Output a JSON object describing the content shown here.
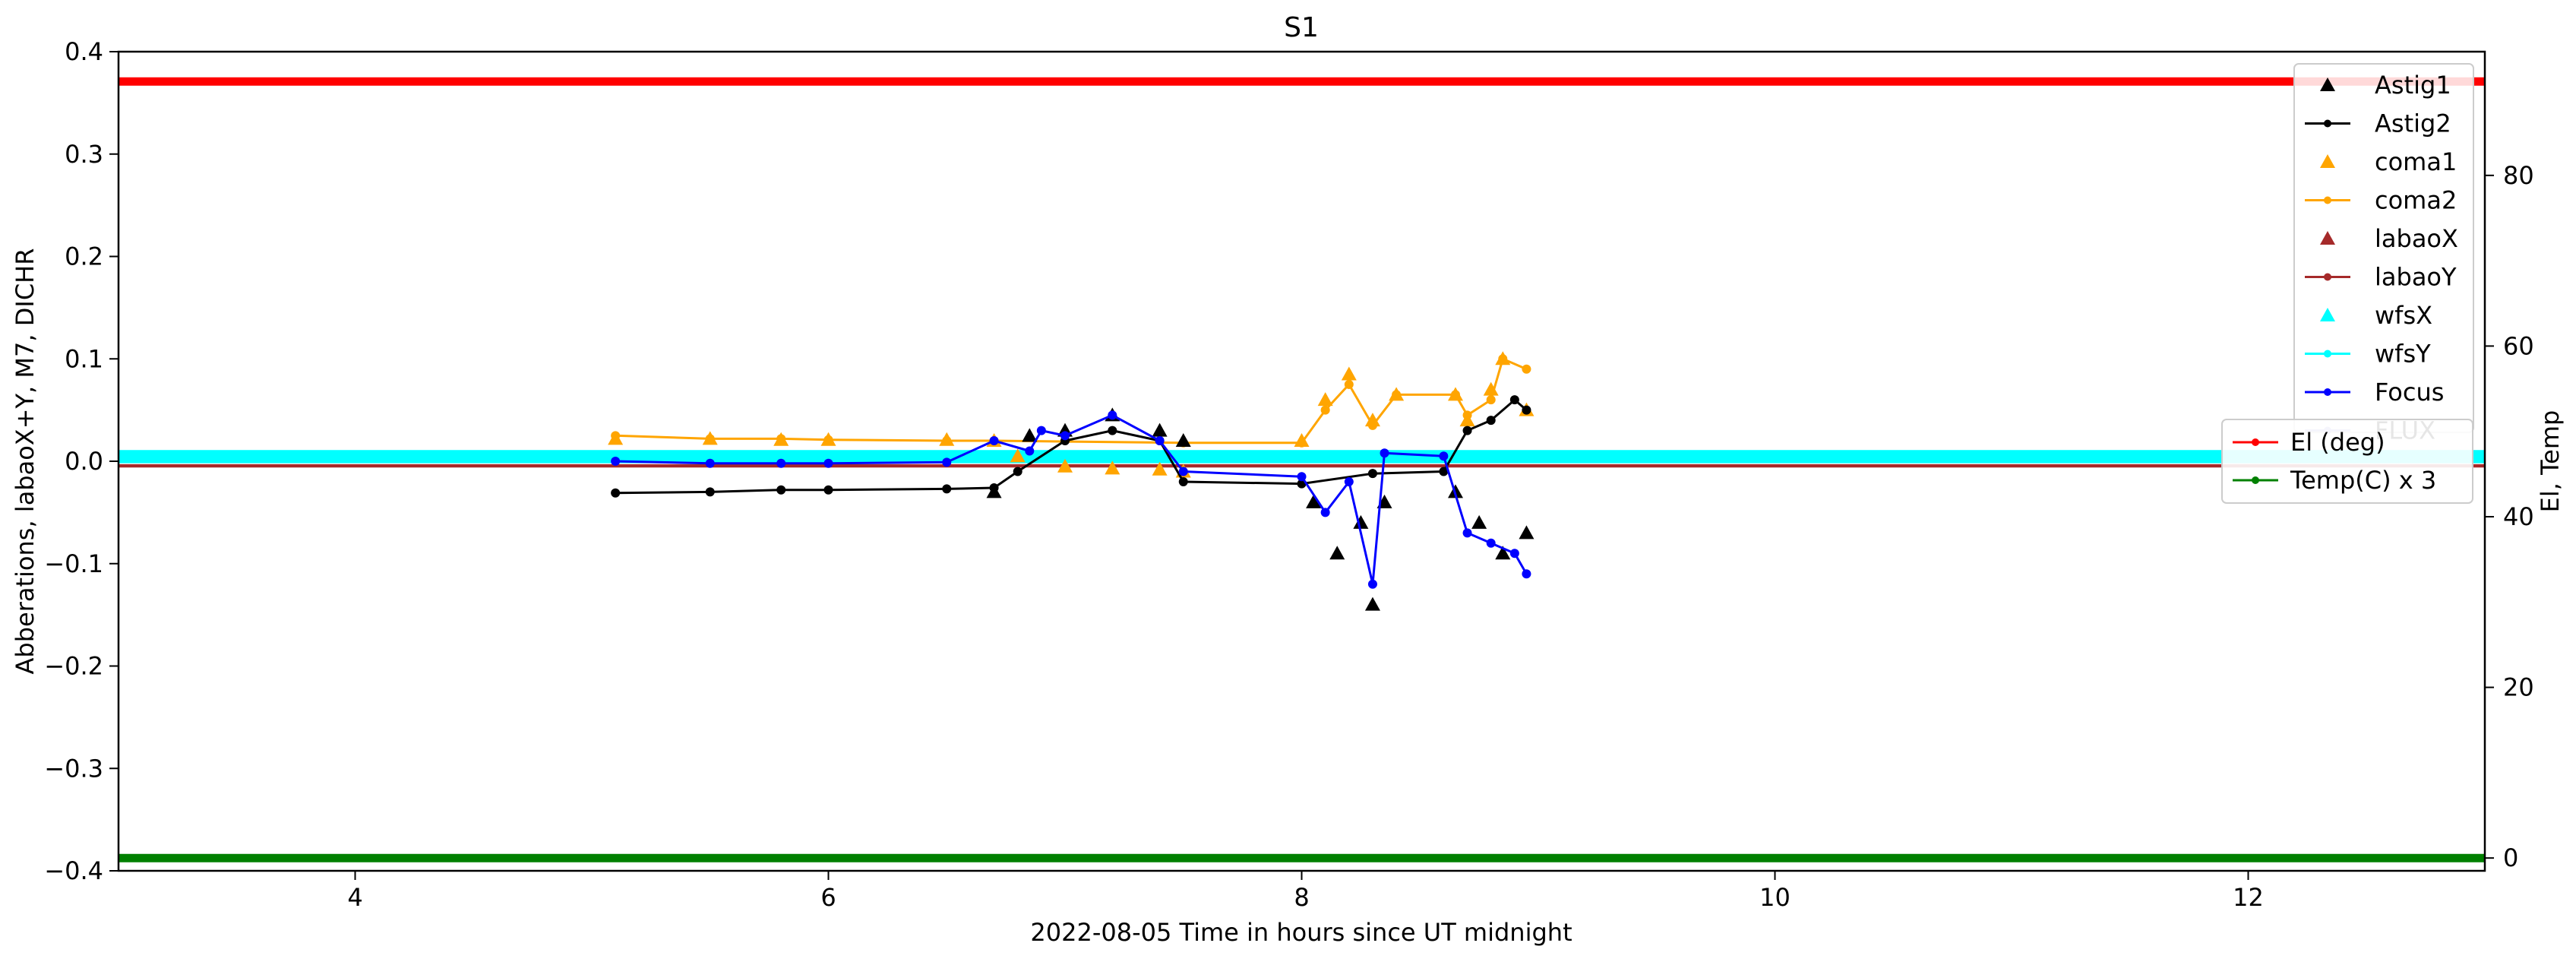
{
  "chart_data": {
    "type": "line",
    "title": "S1",
    "xlabel": "2022-08-05  Time in hours since UT midnight",
    "ylabel": "Abberations, labaoX+Y, M7, DICHR",
    "ylabel_right": "El, Temp",
    "xlim": [
      3,
      13
    ],
    "ylim": [
      -0.4,
      0.4
    ],
    "ylim_right": [
      -1.5,
      94.5
    ],
    "x_ticks": [
      4,
      6,
      8,
      10,
      12
    ],
    "y_ticks": [
      -0.4,
      -0.3,
      -0.2,
      -0.1,
      0.0,
      0.1,
      0.2,
      0.3,
      0.4
    ],
    "y_tick_labels": [
      "−0.4",
      "−0.3",
      "−0.2",
      "−0.1",
      "0.0",
      "0.1",
      "0.2",
      "0.3",
      "0.4"
    ],
    "y_right_ticks": [
      0,
      20,
      40,
      60,
      80
    ],
    "grid": false,
    "legend_main": {
      "placement": "top-right",
      "entries": [
        {
          "label": "Astig1",
          "color": "#000000",
          "style": "triangle"
        },
        {
          "label": "Astig2",
          "color": "#000000",
          "style": "line-dot"
        },
        {
          "label": "coma1",
          "color": "#ffa500",
          "style": "triangle"
        },
        {
          "label": "coma2",
          "color": "#ffa500",
          "style": "line-dot"
        },
        {
          "label": "labaoX",
          "color": "#a52a2a",
          "style": "triangle"
        },
        {
          "label": "labaoY",
          "color": "#a52a2a",
          "style": "line-dot"
        },
        {
          "label": "wfsX",
          "color": "#00ffff",
          "style": "triangle"
        },
        {
          "label": "wfsY",
          "color": "#00ffff",
          "style": "line-dot"
        },
        {
          "label": "Focus",
          "color": "#0000ff",
          "style": "line-dot"
        },
        {
          "label": "FLUX",
          "color": "#9999dd",
          "style": "line-dot"
        }
      ]
    },
    "legend_right": {
      "placement": "center-right",
      "entries": [
        {
          "label": "El (deg)",
          "color": "#ff0000",
          "style": "line-dot"
        },
        {
          "label": "Temp(C) x 3",
          "color": "#008000",
          "style": "line-dot"
        }
      ]
    },
    "series": [
      {
        "name": "El (deg)",
        "axis": "right",
        "color": "#ff0000",
        "x": [
          3,
          13
        ],
        "y": [
          91,
          91
        ]
      },
      {
        "name": "Temp(C) x 3",
        "axis": "right",
        "color": "#008000",
        "x": [
          3,
          13
        ],
        "y": [
          0,
          0
        ]
      },
      {
        "name": "labaoX",
        "color": "#a52a2a",
        "x": [
          3,
          13
        ],
        "y": [
          -0.004,
          -0.004
        ]
      },
      {
        "name": "labaoY",
        "color": "#a52a2a",
        "x": [
          3,
          13
        ],
        "y": [
          -0.005,
          -0.005
        ]
      },
      {
        "name": "wfsX",
        "color": "#00ffff",
        "x": [
          3,
          13
        ],
        "y": [
          0.005,
          0.005
        ]
      },
      {
        "name": "wfsY",
        "color": "#00ffff",
        "x": [
          3,
          13
        ],
        "y": [
          0.004,
          0.004
        ]
      },
      {
        "name": "coma1",
        "color": "#ffa500",
        "x": [
          5.1,
          5.5,
          5.8,
          6.0,
          6.5,
          6.7,
          6.8,
          7.0,
          7.2,
          7.4,
          7.5,
          8.0,
          8.1,
          8.2,
          8.3,
          8.4,
          8.65,
          8.7,
          8.8,
          8.85,
          8.95
        ],
        "y": [
          0.022,
          0.022,
          0.021,
          0.021,
          0.021,
          0.02,
          0.005,
          -0.005,
          -0.007,
          -0.008,
          -0.01,
          0.02,
          0.06,
          0.085,
          0.04,
          0.065,
          0.065,
          0.04,
          0.07,
          0.1,
          0.05
        ]
      },
      {
        "name": "coma2",
        "color": "#ffa500",
        "x": [
          5.1,
          5.5,
          5.8,
          6.0,
          6.5,
          6.7,
          7.5,
          8.0,
          8.1,
          8.2,
          8.3,
          8.4,
          8.65,
          8.7,
          8.8,
          8.85,
          8.95
        ],
        "y": [
          0.025,
          0.022,
          0.022,
          0.021,
          0.02,
          0.02,
          0.018,
          0.018,
          0.05,
          0.075,
          0.035,
          0.065,
          0.065,
          0.045,
          0.06,
          0.1,
          0.09
        ]
      },
      {
        "name": "Astig1",
        "color": "#000000",
        "x": [
          6.7,
          6.85,
          7.0,
          7.2,
          7.4,
          7.5,
          8.05,
          8.15,
          8.25,
          8.3,
          8.35,
          8.65,
          8.75,
          8.85,
          8.95
        ],
        "y": [
          -0.03,
          0.025,
          0.03,
          0.045,
          0.03,
          0.02,
          -0.04,
          -0.09,
          -0.06,
          -0.14,
          -0.04,
          -0.03,
          -0.06,
          -0.09,
          -0.07
        ]
      },
      {
        "name": "Astig2",
        "color": "#000000",
        "x": [
          5.1,
          5.5,
          5.8,
          6.0,
          6.5,
          6.7,
          6.8,
          7.0,
          7.2,
          7.4,
          7.5,
          8.0,
          8.3,
          8.6,
          8.7,
          8.8,
          8.9,
          8.95
        ],
        "y": [
          -0.031,
          -0.03,
          -0.028,
          -0.028,
          -0.027,
          -0.026,
          -0.01,
          0.02,
          0.03,
          0.02,
          -0.02,
          -0.022,
          -0.012,
          -0.01,
          0.03,
          0.04,
          0.06,
          0.05
        ]
      },
      {
        "name": "Focus",
        "color": "#0000ff",
        "x": [
          5.1,
          5.5,
          5.8,
          6.0,
          6.5,
          6.7,
          6.85,
          6.9,
          7.0,
          7.2,
          7.4,
          7.5,
          8.0,
          8.1,
          8.2,
          8.3,
          8.35,
          8.6,
          8.7,
          8.8,
          8.9,
          8.95
        ],
        "y": [
          0.0,
          -0.002,
          -0.002,
          -0.002,
          -0.001,
          0.02,
          0.01,
          0.03,
          0.025,
          0.045,
          0.02,
          -0.01,
          -0.015,
          -0.05,
          -0.02,
          -0.12,
          0.008,
          0.005,
          -0.07,
          -0.08,
          -0.09,
          -0.11
        ]
      }
    ]
  }
}
